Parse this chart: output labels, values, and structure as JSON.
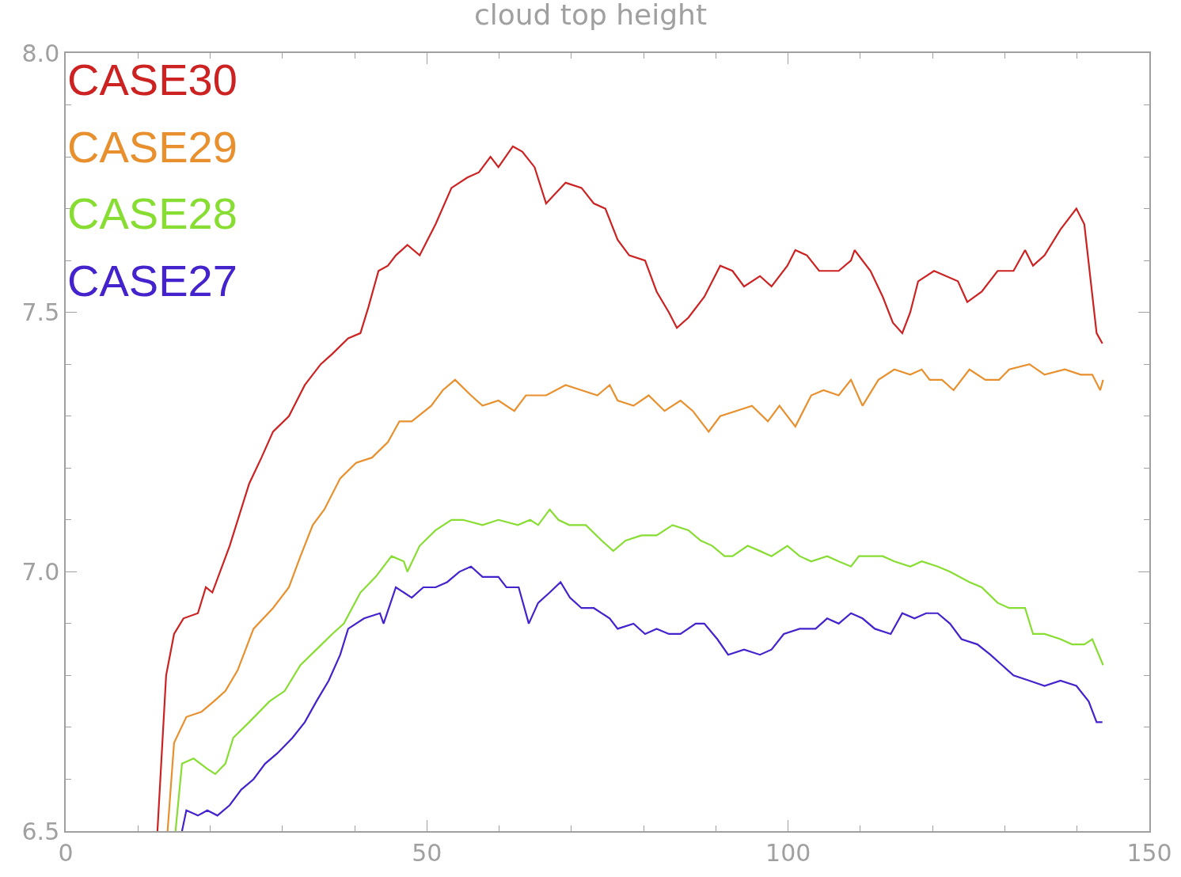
{
  "chart_data": {
    "type": "line",
    "title": "cloud top height",
    "xlim": [
      0,
      150
    ],
    "ylim": [
      6.5,
      8.0
    ],
    "xticks": [
      0,
      {
        "value": 10,
        "label": null
      },
      {
        "value": 20,
        "label": null
      },
      {
        "value": 30,
        "label": null
      },
      {
        "value": 40,
        "label": null
      },
      50,
      {
        "value": 60,
        "label": null
      },
      {
        "value": 70,
        "label": null
      },
      {
        "value": 80,
        "label": null
      },
      {
        "value": 90,
        "label": null
      },
      100,
      {
        "value": 110,
        "label": null
      },
      {
        "value": 120,
        "label": null
      },
      {
        "value": 130,
        "label": null
      },
      {
        "value": 140,
        "label": null
      },
      150
    ],
    "yticks": [
      6.5,
      {
        "value": 6.6,
        "label": null
      },
      {
        "value": 6.7,
        "label": null
      },
      {
        "value": 6.8,
        "label": null
      },
      {
        "value": 6.9,
        "label": null
      },
      {
        "value": 7.0,
        "label": "7.0"
      },
      {
        "value": 7.1,
        "label": null
      },
      {
        "value": 7.2,
        "label": null
      },
      {
        "value": 7.3,
        "label": null
      },
      {
        "value": 7.4,
        "label": null
      },
      7.5,
      {
        "value": 7.6,
        "label": null
      },
      {
        "value": 7.7,
        "label": null
      },
      {
        "value": 7.8,
        "label": null
      },
      {
        "value": 7.9,
        "label": null
      },
      {
        "value": 8.0,
        "label": "8.0"
      }
    ],
    "legend": "top left",
    "marker": "none",
    "line_style": "solid",
    "series": [
      {
        "name": "CASE30",
        "color": "#cc2222",
        "x": [
          12.7,
          13.9,
          15.0,
          16.3,
          18.3,
          19.4,
          20.3,
          22.7,
          25.4,
          27.1,
          28.7,
          30.9,
          33.1,
          35.3,
          36.9,
          39.1,
          40.8,
          41.9,
          43.3,
          44.6,
          45.7,
          47.3,
          49.0,
          51.2,
          53.4,
          55.6,
          57.2,
          58.8,
          59.9,
          61.9,
          63.2,
          64.9,
          66.5,
          69.2,
          71.4,
          73.1,
          74.7,
          76.4,
          78.0,
          80.2,
          81.8,
          83.5,
          84.6,
          86.2,
          88.4,
          90.6,
          92.3,
          93.9,
          96.1,
          97.7,
          99.9,
          101.0,
          102.6,
          104.3,
          107.0,
          108.7,
          109.2,
          111.4,
          113.1,
          114.5,
          115.8,
          116.9,
          118.0,
          120.2,
          123.5,
          124.8,
          126.8,
          129.0,
          131.2,
          132.8,
          133.9,
          135.5,
          137.7,
          139.9,
          141.0,
          142.7,
          143.5
        ],
        "values": [
          6.5,
          6.8,
          6.88,
          6.91,
          6.92,
          6.97,
          6.96,
          7.05,
          7.17,
          7.22,
          7.27,
          7.3,
          7.36,
          7.4,
          7.42,
          7.45,
          7.46,
          7.51,
          7.58,
          7.59,
          7.61,
          7.63,
          7.61,
          7.67,
          7.74,
          7.76,
          7.77,
          7.8,
          7.78,
          7.82,
          7.81,
          7.78,
          7.71,
          7.75,
          7.74,
          7.71,
          7.7,
          7.64,
          7.61,
          7.6,
          7.54,
          7.5,
          7.47,
          7.49,
          7.53,
          7.59,
          7.58,
          7.55,
          7.57,
          7.55,
          7.59,
          7.62,
          7.61,
          7.58,
          7.58,
          7.6,
          7.62,
          7.58,
          7.53,
          7.48,
          7.46,
          7.5,
          7.56,
          7.58,
          7.56,
          7.52,
          7.54,
          7.58,
          7.58,
          7.62,
          7.59,
          7.61,
          7.66,
          7.7,
          7.67,
          7.46,
          7.44
        ]
      },
      {
        "name": "CASE29",
        "color": "#e8902e",
        "x": [
          14.1,
          15.0,
          16.7,
          18.8,
          20.5,
          22.1,
          23.8,
          26.0,
          28.7,
          30.9,
          32.5,
          34.2,
          35.8,
          38.0,
          40.2,
          42.4,
          44.6,
          46.2,
          47.9,
          50.6,
          52.2,
          53.9,
          56.1,
          57.7,
          59.9,
          62.1,
          63.7,
          66.5,
          69.2,
          71.4,
          73.6,
          75.3,
          76.4,
          78.6,
          80.7,
          82.9,
          85.1,
          86.8,
          89.0,
          90.6,
          92.8,
          95.0,
          97.2,
          98.8,
          101.0,
          103.2,
          104.9,
          107.0,
          108.7,
          110.3,
          112.5,
          114.7,
          116.9,
          118.5,
          119.6,
          121.3,
          122.9,
          125.1,
          127.3,
          129.2,
          130.6,
          133.4,
          135.5,
          138.3,
          140.5,
          142.1,
          143.2,
          143.6
        ],
        "values": [
          6.5,
          6.67,
          6.72,
          6.73,
          6.75,
          6.77,
          6.81,
          6.89,
          6.93,
          6.97,
          7.03,
          7.09,
          7.12,
          7.18,
          7.21,
          7.22,
          7.25,
          7.29,
          7.29,
          7.32,
          7.35,
          7.37,
          7.34,
          7.32,
          7.33,
          7.31,
          7.34,
          7.34,
          7.36,
          7.35,
          7.34,
          7.36,
          7.33,
          7.32,
          7.34,
          7.31,
          7.33,
          7.31,
          7.27,
          7.3,
          7.31,
          7.32,
          7.29,
          7.32,
          7.28,
          7.34,
          7.35,
          7.34,
          7.37,
          7.32,
          7.37,
          7.39,
          7.38,
          7.39,
          7.37,
          7.37,
          7.35,
          7.39,
          7.37,
          7.37,
          7.39,
          7.4,
          7.38,
          7.39,
          7.38,
          7.38,
          7.35,
          7.37
        ]
      },
      {
        "name": "CASE28",
        "color": "#88dd33",
        "x": [
          15.2,
          16.1,
          17.7,
          19.6,
          20.7,
          22.1,
          23.2,
          25.4,
          28.2,
          30.3,
          32.5,
          34.7,
          36.9,
          38.5,
          40.8,
          42.9,
          45.1,
          46.8,
          47.3,
          49.0,
          51.2,
          53.4,
          55.0,
          57.7,
          59.9,
          62.6,
          64.3,
          65.4,
          67.0,
          68.2,
          69.7,
          72.0,
          74.2,
          75.8,
          77.5,
          79.7,
          81.8,
          84.0,
          86.2,
          87.9,
          89.5,
          91.2,
          92.3,
          94.4,
          96.1,
          97.7,
          99.9,
          101.6,
          103.2,
          105.4,
          107.0,
          108.7,
          109.8,
          111.4,
          113.1,
          114.7,
          116.9,
          118.5,
          120.7,
          122.4,
          125.1,
          126.8,
          129.0,
          130.6,
          132.8,
          133.9,
          135.5,
          137.7,
          139.3,
          141.0,
          142.1,
          143.6
        ],
        "values": [
          6.5,
          6.63,
          6.64,
          6.62,
          6.61,
          6.63,
          6.68,
          6.71,
          6.75,
          6.77,
          6.82,
          6.85,
          6.88,
          6.9,
          6.96,
          6.99,
          7.03,
          7.02,
          7.0,
          7.05,
          7.08,
          7.1,
          7.1,
          7.09,
          7.1,
          7.09,
          7.1,
          7.09,
          7.12,
          7.1,
          7.09,
          7.09,
          7.06,
          7.04,
          7.06,
          7.07,
          7.07,
          7.09,
          7.08,
          7.06,
          7.05,
          7.03,
          7.03,
          7.05,
          7.04,
          7.03,
          7.05,
          7.03,
          7.02,
          7.03,
          7.02,
          7.01,
          7.03,
          7.03,
          7.03,
          7.02,
          7.01,
          7.02,
          7.01,
          7.0,
          6.98,
          6.97,
          6.94,
          6.93,
          6.93,
          6.88,
          6.88,
          6.87,
          6.86,
          6.86,
          6.87,
          6.82
        ]
      },
      {
        "name": "CASE27",
        "color": "#4422cc",
        "x": [
          16.1,
          16.7,
          18.3,
          19.6,
          21.0,
          22.7,
          24.3,
          26.0,
          27.6,
          29.3,
          31.4,
          33.1,
          34.7,
          36.4,
          38.0,
          39.1,
          41.3,
          43.5,
          44.0,
          45.7,
          47.9,
          49.5,
          51.2,
          52.8,
          54.5,
          56.1,
          57.7,
          59.9,
          61.0,
          62.7,
          64.1,
          65.4,
          67.0,
          68.5,
          69.8,
          71.4,
          73.1,
          75.3,
          76.4,
          78.6,
          80.2,
          81.8,
          83.5,
          85.1,
          87.2,
          88.4,
          90.2,
          91.7,
          93.9,
          96.1,
          97.7,
          99.4,
          101.6,
          103.8,
          105.4,
          107.0,
          108.7,
          110.3,
          112.0,
          114.2,
          115.8,
          117.5,
          119.1,
          120.7,
          122.4,
          124.0,
          126.2,
          128.0,
          129.6,
          131.2,
          133.4,
          135.5,
          137.7,
          139.9,
          141.6,
          142.7,
          143.5
        ],
        "values": [
          6.5,
          6.54,
          6.53,
          6.54,
          6.53,
          6.55,
          6.58,
          6.6,
          6.63,
          6.65,
          6.68,
          6.71,
          6.75,
          6.79,
          6.84,
          6.89,
          6.91,
          6.92,
          6.9,
          6.97,
          6.95,
          6.97,
          6.97,
          6.98,
          7.0,
          7.01,
          6.99,
          6.99,
          6.97,
          6.97,
          6.9,
          6.94,
          6.96,
          6.98,
          6.95,
          6.93,
          6.93,
          6.91,
          6.89,
          6.9,
          6.88,
          6.89,
          6.88,
          6.88,
          6.9,
          6.9,
          6.87,
          6.84,
          6.85,
          6.84,
          6.85,
          6.88,
          6.89,
          6.89,
          6.91,
          6.9,
          6.92,
          6.91,
          6.89,
          6.88,
          6.92,
          6.91,
          6.92,
          6.92,
          6.9,
          6.87,
          6.86,
          6.84,
          6.82,
          6.8,
          6.79,
          6.78,
          6.79,
          6.78,
          6.75,
          6.71,
          6.71
        ]
      }
    ]
  }
}
